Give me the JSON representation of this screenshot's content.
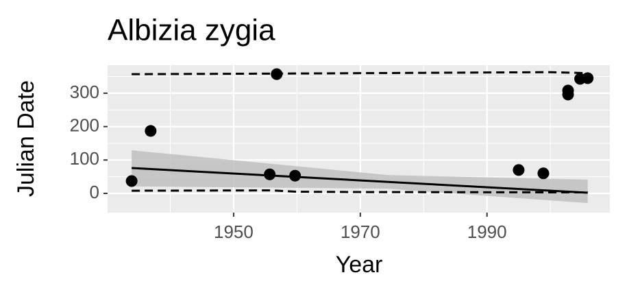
{
  "chart_data": {
    "type": "scatter",
    "title": "Albizia zygia",
    "x_label": "Year",
    "y_label": "Julian Date",
    "xlim": [
      1930.1,
      2009.4
    ],
    "ylim": [
      -57.5,
      384
    ],
    "xticks": [
      1950,
      1970,
      1990
    ],
    "yticks": [
      0,
      100,
      200,
      300
    ],
    "x_minor_ticks": [
      1940,
      1960,
      1980,
      2000
    ],
    "y_minor_ticks": [
      50,
      150,
      250,
      350
    ],
    "grid": true,
    "point_color": "#000000",
    "x": [
      1933.9,
      1936.9,
      1956.8,
      1955.7,
      1959.7,
      1995.0,
      1998.9,
      2002.8,
      2002.8,
      2004.7,
      2005.9
    ],
    "values": [
      37,
      187,
      357,
      57,
      53,
      70,
      60,
      308,
      296,
      343,
      345
    ],
    "fit": {
      "x": [
        1933.9,
        2005.9
      ],
      "values": [
        76,
        2
      ]
    },
    "band": {
      "x": [
        1933.9,
        1974.3,
        2005.9
      ],
      "upper": [
        129,
        55,
        41
      ],
      "lower": [
        21,
        14,
        -29
      ],
      "color": "#bdbdbd"
    },
    "quantile_lines": [
      {
        "x": [
          1933.9,
          1960,
          1980,
          2000,
          2005.9
        ],
        "values": [
          357,
          359,
          361,
          363,
          360
        ]
      },
      {
        "x": [
          1933.9,
          1956,
          1960,
          1970,
          2005.9
        ],
        "values": [
          8,
          9,
          5,
          4,
          3
        ]
      }
    ]
  }
}
